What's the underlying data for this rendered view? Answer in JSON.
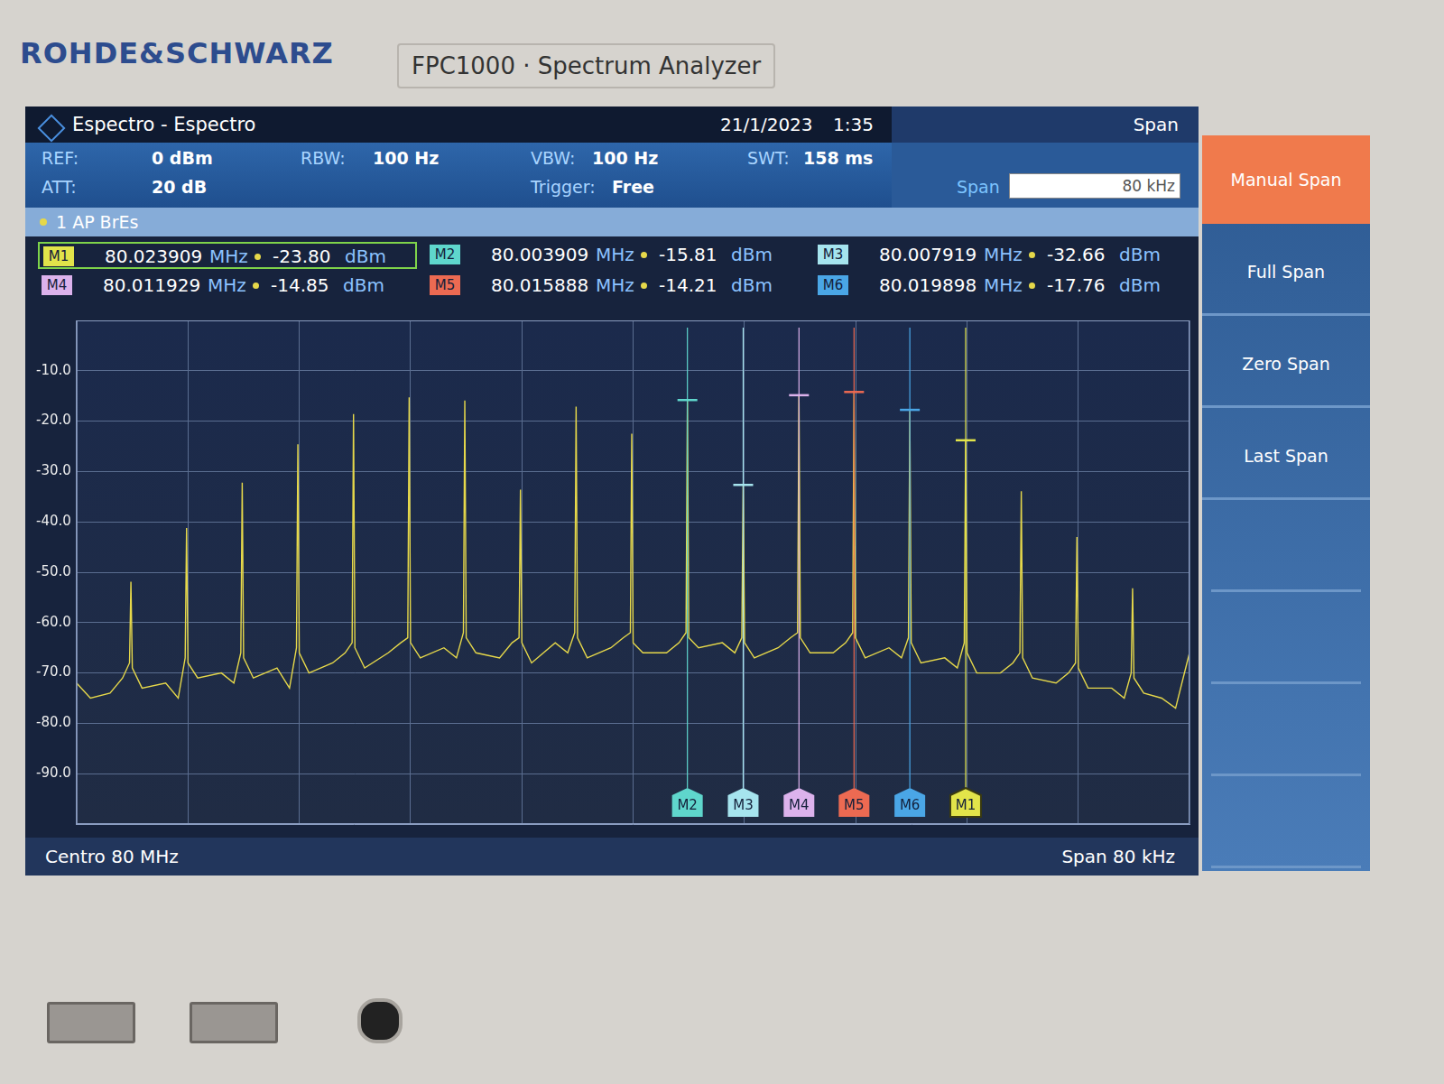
{
  "screen": {
    "brand": "ROHDE&SCHWARZ",
    "model": "FPC1000 · Spectrum Analyzer",
    "title": "Espectro - Espectro",
    "date": "21/1/2023",
    "time": "1:35",
    "params": [
      {
        "label": "REF:",
        "value": "0 dBm"
      },
      {
        "label": "ATT:",
        "value": "20 dB"
      },
      {
        "label": "RBW:",
        "value": "100 Hz"
      },
      {
        "label": "VBW:",
        "value": "100 Hz"
      },
      {
        "label": "Trigger:",
        "value": "Free"
      },
      {
        "label": "SWT:",
        "value": "158 ms"
      }
    ],
    "trace_info": "1 AP BrEs",
    "menu": {
      "title": "Span",
      "input_label": "Span",
      "input_value": "80 kHz",
      "buttons": [
        {
          "label": "Manual Span",
          "active": true
        },
        {
          "label": "Full Span",
          "active": false
        },
        {
          "label": "Zero Span",
          "active": false
        },
        {
          "label": "Last Span",
          "active": false
        }
      ]
    },
    "center": "Centro 80 MHz",
    "span": "Span 80 kHz"
  },
  "chart_data": {
    "type": "line",
    "color": "#e6d84a",
    "grid": true,
    "tick_labels": "y",
    "xlim": [
      79.96,
      80.04
    ],
    "xticks": [
      79.96,
      79.968,
      79.976,
      79.984,
      79.992,
      80.0,
      80.008,
      80.016,
      80.024,
      80.032,
      80.04
    ],
    "ylim": [
      -100,
      0
    ],
    "yticks": [
      {
        "value": -10,
        "label": "-10.0"
      },
      {
        "value": -20,
        "label": "-20.0"
      },
      {
        "value": -30,
        "label": "-30.0"
      },
      {
        "value": -40,
        "label": "-40.0"
      },
      {
        "value": -50,
        "label": "-50.0"
      },
      {
        "value": -60,
        "label": "-60.0"
      },
      {
        "value": -70,
        "label": "-70.0"
      },
      {
        "value": -80,
        "label": "-80.0"
      },
      {
        "value": -90,
        "label": "-90.0"
      }
    ],
    "x": [
      79.96,
      79.961,
      79.962409,
      79.963309,
      79.963809,
      79.963909,
      79.964009,
      79.964709,
      79.966409,
      79.967309,
      79.967809,
      79.967909,
      79.968009,
      79.968709,
      79.970409,
      79.971309,
      79.971809,
      79.971909,
      79.972009,
      79.972709,
      79.974409,
      79.975309,
      79.975809,
      79.975909,
      79.976009,
      79.976709,
      79.978409,
      79.979309,
      79.979809,
      79.979909,
      79.980009,
      79.980709,
      79.982409,
      79.983309,
      79.983809,
      79.983909,
      79.984009,
      79.984709,
      79.986409,
      79.987309,
      79.987809,
      79.987909,
      79.988009,
      79.988709,
      79.990409,
      79.991309,
      79.991809,
      79.991909,
      79.992009,
      79.992709,
      79.994409,
      79.995309,
      79.995809,
      79.995909,
      79.996009,
      79.996709,
      79.998409,
      79.999309,
      79.999809,
      79.999909,
      80.000009,
      80.000709,
      80.002409,
      80.003309,
      80.003809,
      80.003909,
      80.004009,
      80.004709,
      80.006419,
      80.007319,
      80.007819,
      80.007919,
      80.008019,
      80.008719,
      80.010429,
      80.011329,
      80.011829,
      80.011929,
      80.012029,
      80.012729,
      80.014388,
      80.015288,
      80.015788,
      80.015888,
      80.015988,
      80.016688,
      80.018398,
      80.019298,
      80.019798,
      80.019898,
      80.019998,
      80.020698,
      80.022409,
      80.023309,
      80.023809,
      80.023909,
      80.024009,
      80.024709,
      80.026409,
      80.027309,
      80.027809,
      80.027909,
      80.028009,
      80.028709,
      80.030409,
      80.031309,
      80.031809,
      80.031909,
      80.032009,
      80.032709,
      80.034409,
      80.035309,
      80.035809,
      80.035909,
      80.036009,
      80.036709,
      80.038,
      80.039,
      80.04
    ],
    "values": [
      -72,
      -75,
      -74,
      -71,
      -68,
      -51.9,
      -69,
      -73,
      -72,
      -75,
      -67,
      -41.2,
      -68,
      -71,
      -70,
      -72,
      -66,
      -32.2,
      -67,
      -71,
      -69,
      -73,
      -65,
      -24.6,
      -66,
      -70,
      -68,
      -66,
      -64,
      -18.6,
      -65,
      -69,
      -66,
      -64,
      -63,
      -15.3,
      -64,
      -67,
      -65,
      -67,
      -62,
      -15.9,
      -63,
      -66,
      -67,
      -64,
      -63,
      -33.6,
      -64,
      -68,
      -64,
      -66,
      -62,
      -17.1,
      -63,
      -67,
      -65,
      -63,
      -62,
      -22.5,
      -64,
      -66,
      -66,
      -64,
      -62,
      -15.81,
      -63,
      -65,
      -64,
      -66,
      -63,
      -32.66,
      -64,
      -67,
      -65,
      -63,
      -62,
      -14.85,
      -63,
      -66,
      -66,
      -64,
      -62,
      -14.21,
      -63,
      -67,
      -65,
      -67,
      -63,
      -17.76,
      -64,
      -68,
      -67,
      -69,
      -64,
      -23.8,
      -66,
      -70,
      -70,
      -68,
      -66,
      -33.9,
      -67,
      -71,
      -72,
      -70,
      -68,
      -43,
      -69,
      -73,
      -73,
      -75,
      -70,
      -53.2,
      -71,
      -74,
      -75,
      -77,
      -66
    ],
    "markers": [
      {
        "name": "M1",
        "x": 80.023909,
        "y": -23.8,
        "x_label": "80.023909 MHz",
        "y_label": "-23.80 dBm",
        "color": "#e2e44a",
        "active": true
      },
      {
        "name": "M2",
        "x": 80.003909,
        "y": -15.81,
        "x_label": "80.003909 MHz",
        "y_label": "-15.81 dBm",
        "color": "#5fd6cc",
        "active": false
      },
      {
        "name": "M3",
        "x": 80.007919,
        "y": -32.66,
        "x_label": "80.007919 MHz",
        "y_label": "-32.66 dBm",
        "color": "#a6e4ee",
        "active": false
      },
      {
        "name": "M4",
        "x": 80.011929,
        "y": -14.85,
        "x_label": "80.011929 MHz",
        "y_label": "-14.85 dBm",
        "color": "#dcb2ec",
        "active": false
      },
      {
        "name": "M5",
        "x": 80.015888,
        "y": -14.21,
        "x_label": "80.015888 MHz",
        "y_label": "-14.21 dBm",
        "color": "#ec6a52",
        "active": false
      },
      {
        "name": "M6",
        "x": 80.019898,
        "y": -17.76,
        "x_label": "80.019898 MHz",
        "y_label": "-17.76 dBm",
        "color": "#4aa6e6",
        "active": false
      }
    ]
  }
}
